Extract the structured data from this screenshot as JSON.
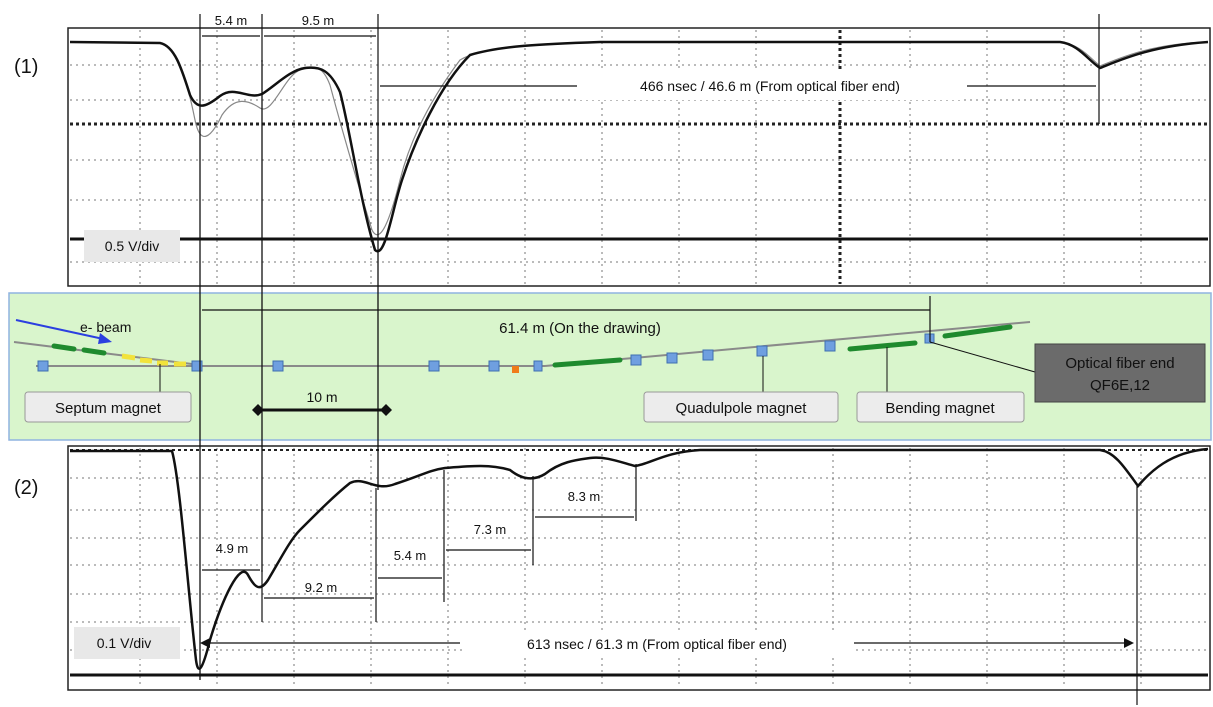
{
  "panel1": {
    "label": "(1)",
    "scale": "0.5 V/div",
    "dist_a": "5.4 m",
    "dist_b": "9.5 m",
    "span_text": "466 nsec / 46.6 m (From optical fiber end)"
  },
  "panel2": {
    "label": "(2)",
    "scale": "0.1 V/div",
    "dist_1": "4.9 m",
    "dist_2": "9.2 m",
    "dist_3": "5.4 m",
    "dist_4": "7.3 m",
    "dist_5": "8.3 m",
    "span_text": "613 nsec / 61.3 m (From optical fiber end)"
  },
  "beamline": {
    "beam_label": "e- beam",
    "drawing_span": "61.4 m (On the drawing)",
    "scale_bar": "10 m",
    "septum": "Septum magnet",
    "quadrupole": "Quadulpole magnet",
    "bending": "Bending magnet",
    "fiber_end_line1": "Optical fiber end",
    "fiber_end_line2": "QF6E,12"
  },
  "colors": {
    "panel_bg": "#d9f5cc",
    "panel_border": "#8fb3e0",
    "beampipe": "#8a8a8a",
    "quad_block": "#6f9fe0",
    "bend_segment": "#1f8a2e",
    "septum_segment": "#f2e33c",
    "beam_arrow": "#2b3fe0",
    "orange_marker": "#f07c1a"
  }
}
